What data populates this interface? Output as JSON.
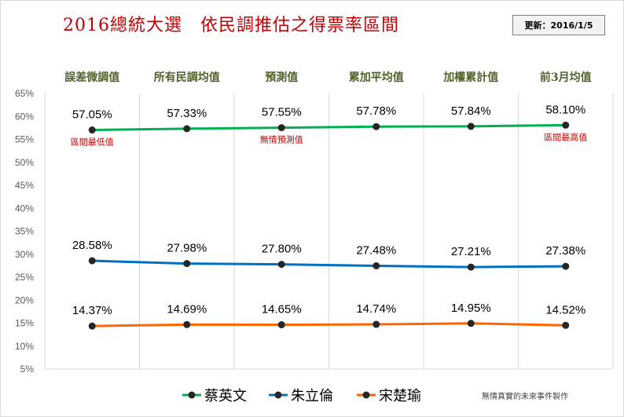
{
  "header": {
    "title": "2016總統大選　依民調推估之得票率區間",
    "update": "更新：2016/1/5"
  },
  "credit": "無情真實的未來事件製作",
  "annotations": [
    {
      "text": "區間最低值",
      "category_index": 0,
      "series": "蔡英文"
    },
    {
      "text": "無情預測值",
      "category_index": 2,
      "series": "蔡英文"
    },
    {
      "text": "區間最高值",
      "category_index": 5,
      "series": "蔡英文"
    }
  ],
  "chart_data": {
    "type": "line",
    "categories": [
      "誤差微調值",
      "所有民調均值",
      "預測值",
      "累加平均值",
      "加權累計值",
      "前3月均值"
    ],
    "yticks": [
      "65%",
      "60%",
      "55%",
      "50%",
      "45%",
      "40%",
      "35%",
      "30%",
      "25%",
      "20%",
      "15%",
      "10%",
      "5%"
    ],
    "ylim": [
      5,
      65
    ],
    "y_unit": "%",
    "grid": "vertical",
    "legend": "bottom",
    "series": [
      {
        "name": "蔡英文",
        "color": "#00b050",
        "values": [
          57.05,
          57.33,
          57.55,
          57.78,
          57.84,
          58.1
        ],
        "labels": [
          "57.05%",
          "57.33%",
          "57.55%",
          "57.78%",
          "57.84%",
          "58.10%"
        ]
      },
      {
        "name": "朱立倫",
        "color": "#0070c0",
        "values": [
          28.58,
          27.98,
          27.8,
          27.48,
          27.21,
          27.38
        ],
        "labels": [
          "28.58%",
          "27.98%",
          "27.80%",
          "27.48%",
          "27.21%",
          "27.38%"
        ]
      },
      {
        "name": "宋楚瑜",
        "color": "#ff6600",
        "values": [
          14.37,
          14.69,
          14.65,
          14.74,
          14.95,
          14.52
        ],
        "labels": [
          "14.37%",
          "14.69%",
          "14.65%",
          "14.74%",
          "14.95%",
          "14.52%"
        ]
      }
    ]
  }
}
